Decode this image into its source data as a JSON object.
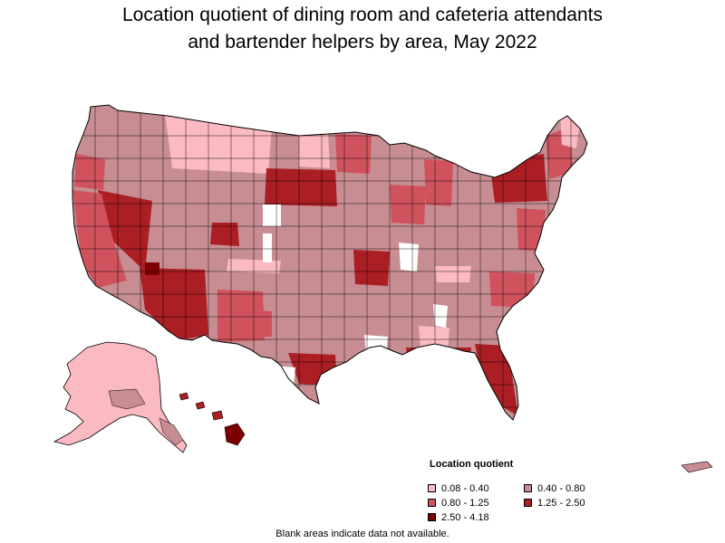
{
  "title_line1": "Location quotient of dining room and cafeteria attendants",
  "title_line2": "and bartender helpers by area, May 2022",
  "legend": {
    "title": "Location quotient",
    "items": [
      {
        "label": "0.08 - 0.40",
        "color": "#fbb9c1"
      },
      {
        "label": "0.40 - 0.80",
        "color": "#c78d92"
      },
      {
        "label": "0.80 - 1.25",
        "color": "#cf525d"
      },
      {
        "label": "1.25 - 2.50",
        "color": "#ab1e24"
      },
      {
        "label": "2.50 - 4.18",
        "color": "#7d0000"
      }
    ]
  },
  "footnote": "Blank areas indicate data not available.",
  "colors": {
    "outline": "#000000",
    "blank": "#ffffff"
  }
}
